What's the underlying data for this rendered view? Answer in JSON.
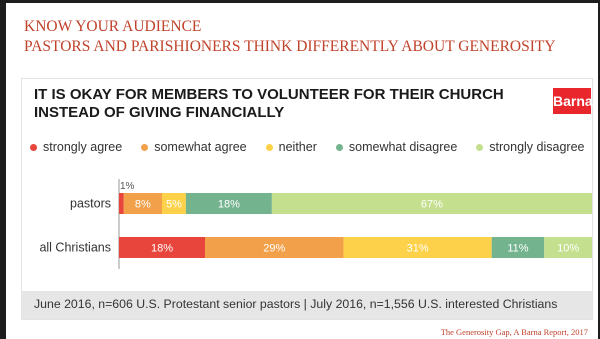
{
  "slide": {
    "title_line1": "KNOW YOUR AUDIENCE",
    "title_line2": "PASTORS AND PARISHIONERS THINK DIFFERENTLY ABOUT GENEROSITY",
    "source": "The Generosity Gap, A Barna Report, 2017"
  },
  "brand": {
    "name": "Barna",
    "color": "#e8262c"
  },
  "footnote": "June 2016, n=606 U.S. Protestant senior pastors | July 2016, n=1,556 U.S. interested Christians",
  "chart_data": {
    "type": "bar",
    "orientation": "horizontal",
    "stacked": true,
    "title": "IT IS OKAY FOR MEMBERS TO VOLUNTEER FOR THEIR CHURCH INSTEAD OF GIVING FINANCIALLY",
    "categories": [
      "pastors",
      "all Christians"
    ],
    "unit": "%",
    "legend_position": "top",
    "series": [
      {
        "name": "strongly agree",
        "color": "#e8453c",
        "values": [
          1,
          18
        ],
        "labels": [
          "1%",
          "18%"
        ]
      },
      {
        "name": "somewhat agree",
        "color": "#f2a04a",
        "values": [
          8,
          29
        ],
        "labels": [
          "8%",
          "29%"
        ]
      },
      {
        "name": "neither",
        "color": "#fdd24a",
        "values": [
          5,
          31
        ],
        "labels": [
          "5%",
          "31%"
        ]
      },
      {
        "name": "somewhat disagree",
        "color": "#73b48f",
        "values": [
          18,
          11
        ],
        "labels": [
          "18%",
          "11%"
        ]
      },
      {
        "name": "strongly disagree",
        "color": "#c4df8e",
        "values": [
          67,
          10
        ],
        "labels": [
          "67%",
          "10%"
        ]
      }
    ]
  }
}
